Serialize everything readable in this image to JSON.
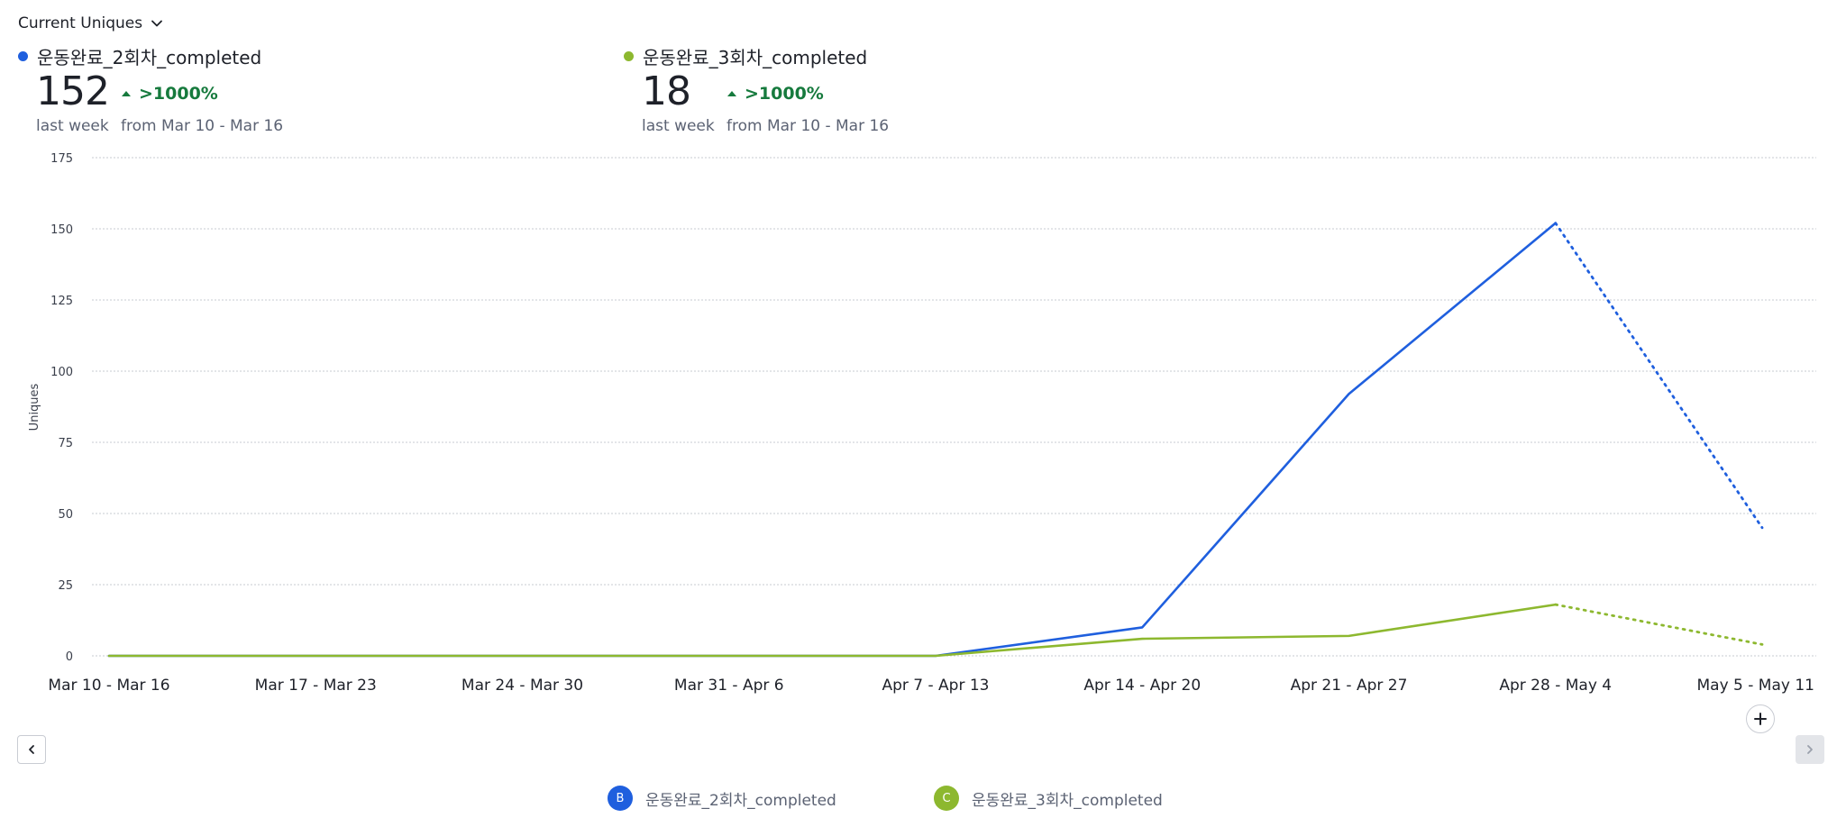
{
  "metric_selector": {
    "label": "Current Uniques",
    "icon": "chevron-down-icon"
  },
  "summaries": [
    {
      "name": "운동완료_2회차_completed",
      "color": "#1f5fde",
      "value": "152",
      "period": "last week",
      "delta": ">1000%",
      "delta_from": "from Mar 10 - Mar 16",
      "delta_icon": "triangle-up-icon"
    },
    {
      "name": "운동완료_3회차_completed",
      "color": "#8db82f",
      "value": "18",
      "period": "last week",
      "delta": ">1000%",
      "delta_from": "from Mar 10 - Mar 16",
      "delta_icon": "triangle-up-icon"
    }
  ],
  "chart_data": {
    "type": "line",
    "title": "",
    "xlabel": "",
    "ylabel": "Uniques",
    "ylim": [
      0,
      175
    ],
    "yticks": [
      0,
      25,
      50,
      75,
      100,
      125,
      150,
      175
    ],
    "grid": true,
    "categories": [
      "Mar 10 - Mar 16",
      "Mar 17 - Mar 23",
      "Mar 24 - Mar 30",
      "Mar 31 - Apr 6",
      "Apr 7 - Apr 13",
      "Apr 14 - Apr 20",
      "Apr 21 - Apr 27",
      "Apr 28 - May 4",
      "May 5 - May 11"
    ],
    "incomplete_from_index": 7,
    "series": [
      {
        "name": "운동완료_2회차_completed",
        "badge": "B",
        "color": "#1f5fde",
        "values": [
          0,
          0,
          0,
          0,
          0,
          10,
          92,
          152,
          45
        ]
      },
      {
        "name": "운동완료_3회차_completed",
        "badge": "C",
        "color": "#8db82f",
        "values": [
          0,
          0,
          0,
          0,
          0,
          6,
          7,
          18,
          4
        ]
      }
    ],
    "legend_position": "bottom"
  },
  "controls": {
    "prev_icon": "chevron-left-icon",
    "next_icon": "chevron-right-icon",
    "add_icon": "plus-icon"
  }
}
